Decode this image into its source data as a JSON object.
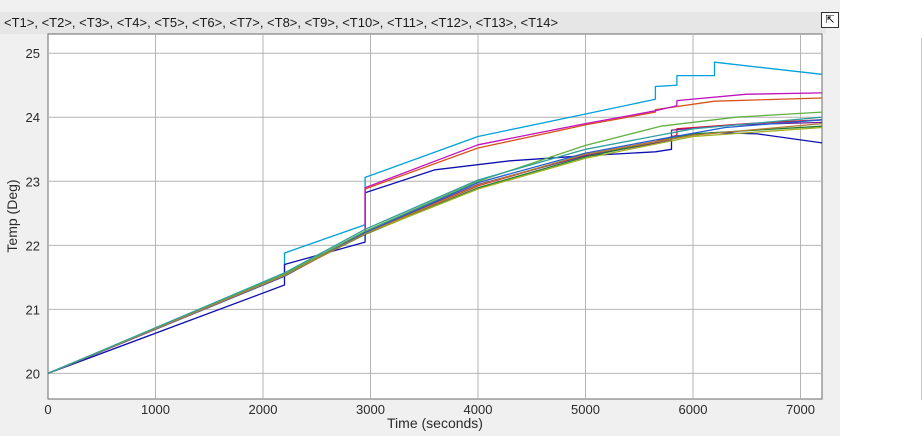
{
  "window": {
    "title_strip": "<T1>, <T2>, <T3>, <T4>, <T5>, <T6>, <T7>, <T8>, <T9>, <T10>, <T11>, <T12>, <T13>, <T14>",
    "undock_icon": "undock-icon"
  },
  "chart_data": {
    "type": "line",
    "xlabel": "Time (seconds)",
    "ylabel": "Temp (Deg)",
    "xlim": [
      0,
      7200
    ],
    "ylim": [
      19.6,
      25.3
    ],
    "xticks": [
      0,
      1000,
      2000,
      3000,
      4000,
      5000,
      6000,
      7000
    ],
    "yticks": [
      20,
      21,
      22,
      23,
      24,
      25
    ],
    "grid": true,
    "series": [
      {
        "color": "#00a0d8",
        "points": [
          [
            0,
            20
          ],
          [
            2200,
            21.55
          ],
          [
            2200,
            21.88
          ],
          [
            2950,
            22.32
          ],
          [
            2950,
            23.06
          ],
          [
            4000,
            23.7
          ],
          [
            5000,
            24.05
          ],
          [
            5650,
            24.28
          ],
          [
            5650,
            24.48
          ],
          [
            5850,
            24.5
          ],
          [
            5850,
            24.65
          ],
          [
            6200,
            24.65
          ],
          [
            6200,
            24.86
          ],
          [
            7200,
            24.67
          ]
        ]
      },
      {
        "color": "#1010b0",
        "points": [
          [
            0,
            20
          ],
          [
            2200,
            21.38
          ],
          [
            2200,
            21.7
          ],
          [
            2950,
            22.05
          ],
          [
            2950,
            22.82
          ],
          [
            3600,
            23.18
          ],
          [
            4300,
            23.32
          ],
          [
            5000,
            23.4
          ],
          [
            5650,
            23.46
          ],
          [
            5800,
            23.5
          ],
          [
            5800,
            23.7
          ],
          [
            6200,
            23.76
          ],
          [
            6600,
            23.74
          ],
          [
            7200,
            23.6
          ]
        ]
      },
      {
        "color": "#d95319",
        "points": [
          [
            0,
            20
          ],
          [
            2200,
            21.52
          ],
          [
            2950,
            22.2
          ],
          [
            2950,
            22.88
          ],
          [
            4000,
            23.52
          ],
          [
            5000,
            23.88
          ],
          [
            5650,
            24.08
          ],
          [
            5650,
            24.12
          ],
          [
            6200,
            24.25
          ],
          [
            7200,
            24.3
          ]
        ]
      },
      {
        "color": "#c010c0",
        "points": [
          [
            0,
            20
          ],
          [
            2200,
            21.52
          ],
          [
            2950,
            22.2
          ],
          [
            2950,
            22.9
          ],
          [
            4000,
            23.57
          ],
          [
            5000,
            23.9
          ],
          [
            5650,
            24.1
          ],
          [
            5850,
            24.18
          ],
          [
            5850,
            24.26
          ],
          [
            6500,
            24.36
          ],
          [
            7200,
            24.38
          ]
        ]
      },
      {
        "color": "#e8102a",
        "points": [
          [
            0,
            20
          ],
          [
            2200,
            21.53
          ],
          [
            2950,
            22.18
          ],
          [
            4000,
            22.93
          ],
          [
            5000,
            23.42
          ],
          [
            5650,
            23.62
          ],
          [
            5850,
            23.72
          ],
          [
            5850,
            23.82
          ],
          [
            6500,
            23.9
          ],
          [
            7200,
            23.96
          ]
        ]
      },
      {
        "color": "#7a2090",
        "points": [
          [
            0,
            20
          ],
          [
            2200,
            21.52
          ],
          [
            2950,
            22.2
          ],
          [
            4000,
            22.95
          ],
          [
            5000,
            23.4
          ],
          [
            5800,
            23.64
          ],
          [
            5800,
            23.8
          ],
          [
            6400,
            23.88
          ],
          [
            7200,
            23.92
          ]
        ]
      },
      {
        "color": "#208030",
        "points": [
          [
            0,
            20
          ],
          [
            2200,
            21.54
          ],
          [
            2950,
            22.17
          ],
          [
            4000,
            22.9
          ],
          [
            5000,
            23.38
          ],
          [
            6000,
            23.74
          ],
          [
            7200,
            23.86
          ]
        ]
      },
      {
        "color": "#a0b020",
        "points": [
          [
            0,
            20
          ],
          [
            2200,
            21.56
          ],
          [
            2950,
            22.18
          ],
          [
            4000,
            22.88
          ],
          [
            5000,
            23.36
          ],
          [
            6000,
            23.7
          ],
          [
            7200,
            23.84
          ]
        ]
      },
      {
        "color": "#60b040",
        "points": [
          [
            0,
            20
          ],
          [
            2200,
            21.55
          ],
          [
            2950,
            22.22
          ],
          [
            4000,
            23.0
          ],
          [
            5000,
            23.56
          ],
          [
            5700,
            23.86
          ],
          [
            6400,
            24.0
          ],
          [
            7200,
            24.08
          ]
        ]
      },
      {
        "color": "#2060d0",
        "points": [
          [
            0,
            20
          ],
          [
            2200,
            21.52
          ],
          [
            2950,
            22.2
          ],
          [
            4000,
            22.98
          ],
          [
            5000,
            23.44
          ],
          [
            5700,
            23.66
          ],
          [
            6300,
            23.84
          ],
          [
            7200,
            23.96
          ]
        ]
      },
      {
        "color": "#b08030",
        "points": [
          [
            0,
            20
          ],
          [
            2200,
            21.53
          ],
          [
            2950,
            22.18
          ],
          [
            4000,
            22.94
          ],
          [
            5000,
            23.42
          ],
          [
            6000,
            23.72
          ],
          [
            7200,
            23.9
          ]
        ]
      },
      {
        "color": "#30a0a0",
        "points": [
          [
            0,
            20
          ],
          [
            2200,
            21.57
          ],
          [
            2950,
            22.25
          ],
          [
            4000,
            23.02
          ],
          [
            5000,
            23.5
          ],
          [
            6000,
            23.82
          ],
          [
            7200,
            24.0
          ]
        ]
      }
    ]
  }
}
